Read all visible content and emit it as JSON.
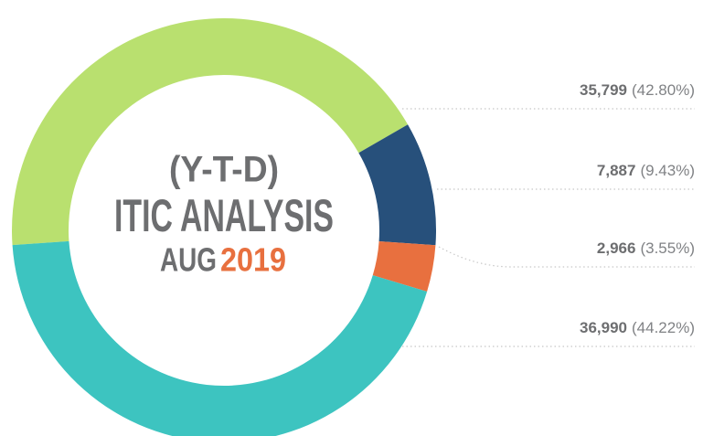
{
  "chart_data": {
    "type": "donut",
    "title": "ITIC ANALYSIS",
    "subtitle": "(Y-T-D)",
    "period_month": "AUG",
    "period_year": "2019",
    "values": [
      35799,
      7887,
      2966,
      36990
    ],
    "value_labels": [
      "35,799",
      "7,887",
      "2,966",
      "36,990"
    ],
    "percent_labels": [
      "(42.80%)",
      "(9.43%)",
      "(3.55%)",
      "(44.22%)"
    ],
    "colors": [
      "#b9e06f",
      "#27507b",
      "#e8703f",
      "#3dc4c0"
    ]
  }
}
